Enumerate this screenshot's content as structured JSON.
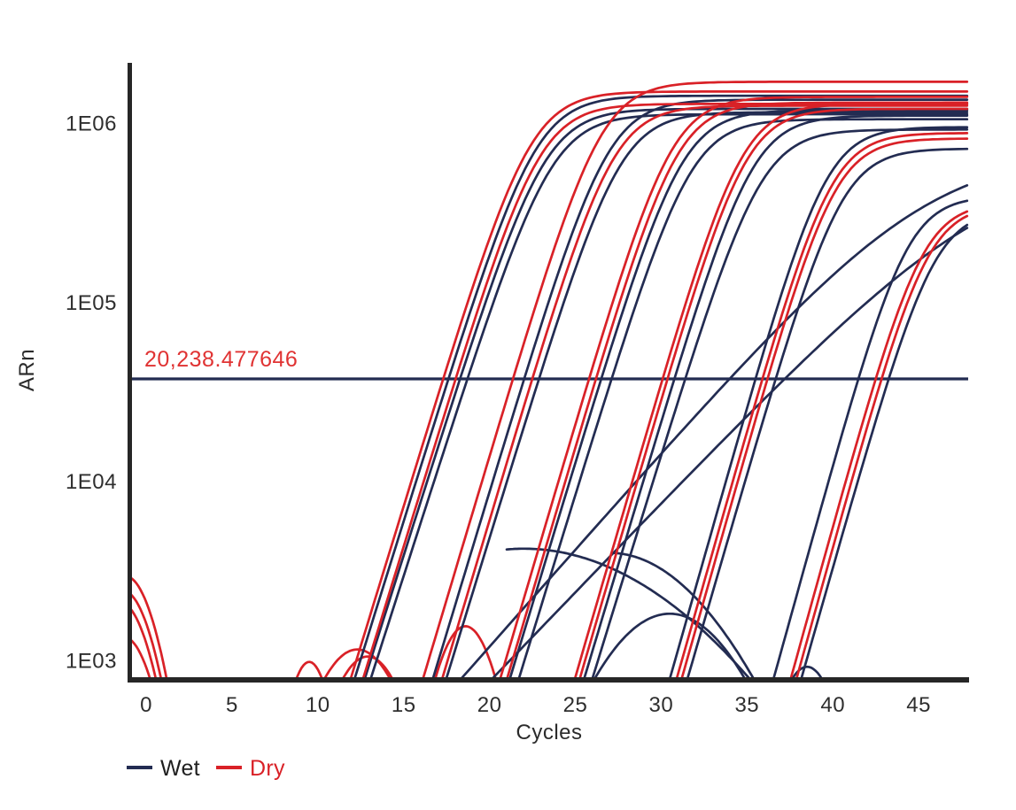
{
  "chart_data": {
    "type": "line",
    "subtype": "qpcr-amplification-plot",
    "title": "",
    "xlabel": "Cycles",
    "ylabel": "ARn",
    "y_scale": "log",
    "grid": "off",
    "x_tick_labels": [
      "0",
      "5",
      "10",
      "15",
      "20",
      "25",
      "30",
      "35",
      "40",
      "45"
    ],
    "x_tick_values": [
      0,
      5,
      10,
      15,
      20,
      25,
      30,
      35,
      40,
      45
    ],
    "y_tick_labels": [
      "1E06",
      "1E05",
      "1E04",
      "1E03"
    ],
    "y_tick_values": [
      1000000,
      100000,
      10000,
      1000
    ],
    "x_range_cycles": [
      -0.93,
      47.9
    ],
    "y_range_arn": [
      770,
      1800000
    ],
    "threshold": {
      "label": "20,238.477646",
      "value": 20238.477646,
      "line_color": "#232c52",
      "label_color": "#e03333"
    },
    "legend": {
      "position": "bottom-left",
      "items": [
        {
          "label": "Wet",
          "color": "#232c52",
          "label_color": "#1f1f1f"
        },
        {
          "label": "Dry",
          "color": "#d92127",
          "label_color": "#d92127"
        }
      ]
    },
    "series_colors": {
      "wet": "#232c52",
      "dry": "#d92127"
    },
    "axis_color": "#262626",
    "amplification_curves": [
      {
        "series": "dry",
        "c50": 22.4,
        "k": 0.72,
        "plateau": 1500000
      },
      {
        "series": "wet",
        "c50": 22.7,
        "k": 0.71,
        "plateau": 1420000
      },
      {
        "series": "dry",
        "c50": 22.9,
        "k": 0.72,
        "plateau": 1280000
      },
      {
        "series": "wet",
        "c50": 23.2,
        "k": 0.7,
        "plateau": 1200000
      },
      {
        "series": "wet",
        "c50": 23.6,
        "k": 0.69,
        "plateau": 1120000
      },
      {
        "series": "dry",
        "c50": 26.5,
        "k": 0.74,
        "plateau": 1700000
      },
      {
        "series": "wet",
        "c50": 26.9,
        "k": 0.73,
        "plateau": 1350000
      },
      {
        "series": "dry",
        "c50": 27.2,
        "k": 0.74,
        "plateau": 1250000
      },
      {
        "series": "wet",
        "c50": 27.6,
        "k": 0.72,
        "plateau": 1150000
      },
      {
        "series": "dry",
        "c50": 30.6,
        "k": 0.75,
        "plateau": 1400000
      },
      {
        "series": "dry",
        "c50": 30.9,
        "k": 0.75,
        "plateau": 1300000
      },
      {
        "series": "wet",
        "c50": 31.2,
        "k": 0.73,
        "plateau": 1180000
      },
      {
        "series": "wet",
        "c50": 31.7,
        "k": 0.72,
        "plateau": 1050000
      },
      {
        "series": "dry",
        "c50": 34.7,
        "k": 0.76,
        "plateau": 1280000
      },
      {
        "series": "dry",
        "c50": 34.9,
        "k": 0.76,
        "plateau": 1200000
      },
      {
        "series": "wet",
        "c50": 35.3,
        "k": 0.74,
        "plateau": 1100000
      },
      {
        "series": "wet",
        "c50": 35.8,
        "k": 0.72,
        "plateau": 920000
      },
      {
        "series": "wet",
        "c50": 39.6,
        "k": 0.78,
        "plateau": 950000
      },
      {
        "series": "dry",
        "c50": 39.9,
        "k": 0.78,
        "plateau": 880000
      },
      {
        "series": "dry",
        "c50": 40.1,
        "k": 0.78,
        "plateau": 820000
      },
      {
        "series": "wet",
        "c50": 40.5,
        "k": 0.76,
        "plateau": 720000
      },
      {
        "series": "wet",
        "c50": 44.3,
        "k": 0.8,
        "plateau": 390000
      },
      {
        "series": "dry",
        "c50": 45.2,
        "k": 0.8,
        "plateau": 360000
      },
      {
        "series": "dry",
        "c50": 45.5,
        "k": 0.8,
        "plateau": 350000
      },
      {
        "series": "wet",
        "c50": 45.9,
        "k": 0.78,
        "plateau": 330000
      },
      {
        "series": "wet",
        "c50": 45.5,
        "k": 0.25,
        "plateau": 700000
      },
      {
        "series": "wet",
        "c50": 49.0,
        "k": 0.23,
        "plateau": 600000
      }
    ],
    "baseline_artifacts": [
      {
        "series": "dry",
        "center": -1.2,
        "peak": 2950,
        "s": 0.1
      },
      {
        "series": "dry",
        "center": -1.35,
        "peak": 2450,
        "s": 0.1
      },
      {
        "series": "dry",
        "center": -1.5,
        "peak": 2100,
        "s": 0.1
      },
      {
        "series": "dry",
        "center": -1.3,
        "peak": 1350,
        "s": 0.1
      },
      {
        "series": "dry",
        "center": 9.5,
        "peak": 980,
        "s": 0.17
      },
      {
        "series": "dry",
        "center": 12.3,
        "peak": 1150,
        "s": 0.045
      },
      {
        "series": "dry",
        "center": 12.9,
        "peak": 1050,
        "s": 0.06
      },
      {
        "series": "dry",
        "center": 18.6,
        "peak": 1550,
        "s": 0.095
      },
      {
        "series": "wet",
        "center": 30.5,
        "peak": 1820,
        "s": 0.019
      },
      {
        "series": "wet",
        "center": 22.0,
        "peak": 4200,
        "s": 0.0042,
        "from": 21.0
      },
      {
        "series": "wet",
        "center": 27.0,
        "peak": 3980,
        "s": 0.01,
        "from": 27.2
      },
      {
        "series": "wet",
        "center": 38.5,
        "peak": 920,
        "s": 0.09
      }
    ]
  }
}
